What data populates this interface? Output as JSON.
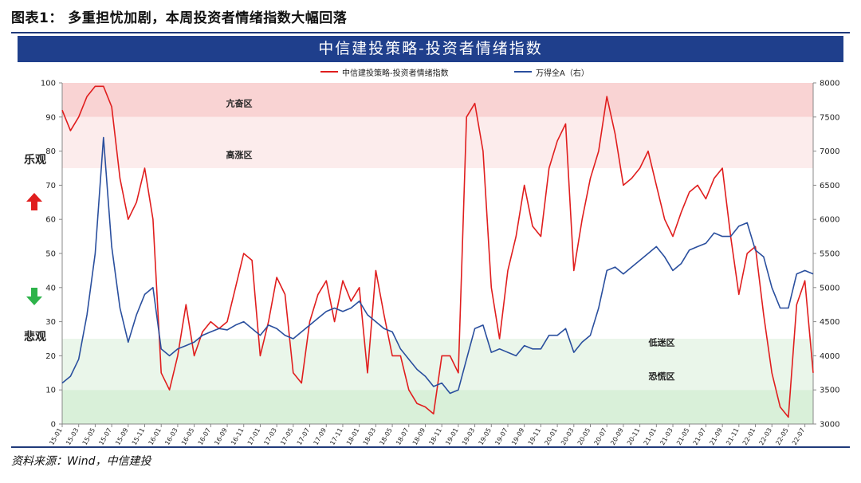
{
  "figure_title": "图表1： 多重担忧加剧，本周投资者情绪指数大幅回落",
  "banner_title": "中信建投策略-投资者情绪指数",
  "side_labels": {
    "optimistic": "乐观",
    "pessimistic": "悲观"
  },
  "source": "资料来源：Wind，中信建投",
  "colors": {
    "sentiment": "#e01e1e",
    "wind_a": "#2a4f9e",
    "banner": "#1f3f8c",
    "zone_extreme_high": "#f9d3d3",
    "zone_high": "#fcecec",
    "zone_low": "#eaf6ea",
    "zone_extreme_low": "#d9f0d9",
    "arrow_up": "#e01e1e",
    "arrow_down": "#2db34a"
  },
  "chart_data": {
    "type": "line",
    "title": "中信建投策略-投资者情绪指数",
    "x_tick_labels": [
      "15-01",
      "15-03",
      "15-05",
      "15-07",
      "15-09",
      "15-11",
      "16-01",
      "16-03",
      "16-05",
      "16-07",
      "16-09",
      "16-11",
      "17-01",
      "17-03",
      "17-05",
      "17-07",
      "17-09",
      "17-11",
      "18-01",
      "18-03",
      "18-05",
      "18-07",
      "18-09",
      "18-11",
      "19-01",
      "19-03",
      "19-05",
      "19-07",
      "19-09",
      "19-11",
      "20-01",
      "20-03",
      "20-05",
      "20-07",
      "20-09",
      "20-11",
      "21-01",
      "21-03",
      "21-05",
      "21-07",
      "21-09",
      "21-11",
      "22-01",
      "22-03",
      "22-05",
      "22-07"
    ],
    "x_range": [
      "15-01",
      "22-08"
    ],
    "left_axis": {
      "ylim": [
        0,
        100
      ],
      "ticks": [
        0,
        10,
        20,
        30,
        40,
        50,
        60,
        70,
        80,
        90,
        100
      ]
    },
    "right_axis": {
      "ylim": [
        3000,
        8000
      ],
      "ticks": [
        3000,
        3500,
        4000,
        4500,
        5000,
        5500,
        6000,
        6500,
        7000,
        7500,
        8000
      ]
    },
    "zones": [
      {
        "label": "亢奋区",
        "from": 90,
        "to": 100
      },
      {
        "label": "高涨区",
        "from": 75,
        "to": 90
      },
      {
        "label": "低迷区",
        "from": 10,
        "to": 25
      },
      {
        "label": "恐慌区",
        "from": 0,
        "to": 10
      }
    ],
    "series": [
      {
        "name": "中信建投策略-投资者情绪指数",
        "axis": "left",
        "points": [
          [
            "15-01",
            92
          ],
          [
            "15-02",
            86
          ],
          [
            "15-03",
            90
          ],
          [
            "15-04",
            96
          ],
          [
            "15-05",
            99
          ],
          [
            "15-06",
            99
          ],
          [
            "15-07",
            93
          ],
          [
            "15-08",
            72
          ],
          [
            "15-09",
            60
          ],
          [
            "15-10",
            65
          ],
          [
            "15-11",
            75
          ],
          [
            "15-12",
            60
          ],
          [
            "16-01",
            15
          ],
          [
            "16-02",
            10
          ],
          [
            "16-03",
            20
          ],
          [
            "16-04",
            35
          ],
          [
            "16-05",
            20
          ],
          [
            "16-06",
            27
          ],
          [
            "16-07",
            30
          ],
          [
            "16-08",
            28
          ],
          [
            "16-09",
            30
          ],
          [
            "16-10",
            40
          ],
          [
            "16-11",
            50
          ],
          [
            "16-12",
            48
          ],
          [
            "17-01",
            20
          ],
          [
            "17-02",
            30
          ],
          [
            "17-03",
            43
          ],
          [
            "17-04",
            38
          ],
          [
            "17-05",
            15
          ],
          [
            "17-06",
            12
          ],
          [
            "17-07",
            30
          ],
          [
            "17-08",
            38
          ],
          [
            "17-09",
            42
          ],
          [
            "17-10",
            30
          ],
          [
            "17-11",
            42
          ],
          [
            "17-12",
            36
          ],
          [
            "18-01",
            40
          ],
          [
            "18-02",
            15
          ],
          [
            "18-03",
            45
          ],
          [
            "18-04",
            32
          ],
          [
            "18-05",
            20
          ],
          [
            "18-06",
            20
          ],
          [
            "18-07",
            10
          ],
          [
            "18-08",
            6
          ],
          [
            "18-09",
            5
          ],
          [
            "18-10",
            3
          ],
          [
            "18-11",
            20
          ],
          [
            "18-12",
            20
          ],
          [
            "19-01",
            15
          ],
          [
            "19-02",
            90
          ],
          [
            "19-03",
            94
          ],
          [
            "19-04",
            80
          ],
          [
            "19-05",
            40
          ],
          [
            "19-06",
            25
          ],
          [
            "19-07",
            45
          ],
          [
            "19-08",
            55
          ],
          [
            "19-09",
            70
          ],
          [
            "19-10",
            58
          ],
          [
            "19-11",
            55
          ],
          [
            "19-12",
            75
          ],
          [
            "20-01",
            83
          ],
          [
            "20-02",
            88
          ],
          [
            "20-03",
            45
          ],
          [
            "20-04",
            60
          ],
          [
            "20-05",
            72
          ],
          [
            "20-06",
            80
          ],
          [
            "20-07",
            96
          ],
          [
            "20-08",
            85
          ],
          [
            "20-09",
            70
          ],
          [
            "20-10",
            72
          ],
          [
            "20-11",
            75
          ],
          [
            "20-12",
            80
          ],
          [
            "21-01",
            70
          ],
          [
            "21-02",
            60
          ],
          [
            "21-03",
            55
          ],
          [
            "21-04",
            62
          ],
          [
            "21-05",
            68
          ],
          [
            "21-06",
            70
          ],
          [
            "21-07",
            66
          ],
          [
            "21-08",
            72
          ],
          [
            "21-09",
            75
          ],
          [
            "21-10",
            55
          ],
          [
            "21-11",
            38
          ],
          [
            "21-12",
            50
          ],
          [
            "22-01",
            52
          ],
          [
            "22-02",
            32
          ],
          [
            "22-03",
            15
          ],
          [
            "22-04",
            5
          ],
          [
            "22-05",
            2
          ],
          [
            "22-06",
            35
          ],
          [
            "22-07",
            42
          ],
          [
            "22-08",
            15
          ]
        ]
      },
      {
        "name": "万得全A（右）",
        "axis": "right",
        "points": [
          [
            "15-01",
            3600
          ],
          [
            "15-02",
            3700
          ],
          [
            "15-03",
            3950
          ],
          [
            "15-04",
            4600
          ],
          [
            "15-05",
            5500
          ],
          [
            "15-06",
            7200
          ],
          [
            "15-07",
            5600
          ],
          [
            "15-08",
            4700
          ],
          [
            "15-09",
            4200
          ],
          [
            "15-10",
            4600
          ],
          [
            "15-11",
            4900
          ],
          [
            "15-12",
            5000
          ],
          [
            "16-01",
            4100
          ],
          [
            "16-02",
            4000
          ],
          [
            "16-03",
            4100
          ],
          [
            "16-04",
            4150
          ],
          [
            "16-05",
            4200
          ],
          [
            "16-06",
            4300
          ],
          [
            "16-07",
            4350
          ],
          [
            "16-08",
            4400
          ],
          [
            "16-09",
            4380
          ],
          [
            "16-10",
            4450
          ],
          [
            "16-11",
            4500
          ],
          [
            "16-12",
            4400
          ],
          [
            "17-01",
            4300
          ],
          [
            "17-02",
            4450
          ],
          [
            "17-03",
            4400
          ],
          [
            "17-04",
            4300
          ],
          [
            "17-05",
            4250
          ],
          [
            "17-06",
            4350
          ],
          [
            "17-07",
            4450
          ],
          [
            "17-08",
            4550
          ],
          [
            "17-09",
            4650
          ],
          [
            "17-10",
            4700
          ],
          [
            "17-11",
            4650
          ],
          [
            "17-12",
            4700
          ],
          [
            "18-01",
            4800
          ],
          [
            "18-02",
            4600
          ],
          [
            "18-03",
            4500
          ],
          [
            "18-04",
            4400
          ],
          [
            "18-05",
            4350
          ],
          [
            "18-06",
            4100
          ],
          [
            "18-07",
            3950
          ],
          [
            "18-08",
            3800
          ],
          [
            "18-09",
            3700
          ],
          [
            "18-10",
            3550
          ],
          [
            "18-11",
            3600
          ],
          [
            "18-12",
            3450
          ],
          [
            "19-01",
            3500
          ],
          [
            "19-02",
            3950
          ],
          [
            "19-03",
            4400
          ],
          [
            "19-04",
            4450
          ],
          [
            "19-05",
            4050
          ],
          [
            "19-06",
            4100
          ],
          [
            "19-07",
            4050
          ],
          [
            "19-08",
            4000
          ],
          [
            "19-09",
            4150
          ],
          [
            "19-10",
            4100
          ],
          [
            "19-11",
            4100
          ],
          [
            "19-12",
            4300
          ],
          [
            "20-01",
            4300
          ],
          [
            "20-02",
            4400
          ],
          [
            "20-03",
            4050
          ],
          [
            "20-04",
            4200
          ],
          [
            "20-05",
            4300
          ],
          [
            "20-06",
            4700
          ],
          [
            "20-07",
            5250
          ],
          [
            "20-08",
            5300
          ],
          [
            "20-09",
            5200
          ],
          [
            "20-10",
            5300
          ],
          [
            "20-11",
            5400
          ],
          [
            "20-12",
            5500
          ],
          [
            "21-01",
            5600
          ],
          [
            "21-02",
            5450
          ],
          [
            "21-03",
            5250
          ],
          [
            "21-04",
            5350
          ],
          [
            "21-05",
            5550
          ],
          [
            "21-06",
            5600
          ],
          [
            "21-07",
            5650
          ],
          [
            "21-08",
            5800
          ],
          [
            "21-09",
            5750
          ],
          [
            "21-10",
            5750
          ],
          [
            "21-11",
            5900
          ],
          [
            "21-12",
            5950
          ],
          [
            "22-01",
            5550
          ],
          [
            "22-02",
            5450
          ],
          [
            "22-03",
            5000
          ],
          [
            "22-04",
            4700
          ],
          [
            "22-05",
            4700
          ],
          [
            "22-06",
            5200
          ],
          [
            "22-07",
            5250
          ],
          [
            "22-08",
            5200
          ]
        ]
      }
    ],
    "grid": false,
    "legend_position": "top"
  }
}
